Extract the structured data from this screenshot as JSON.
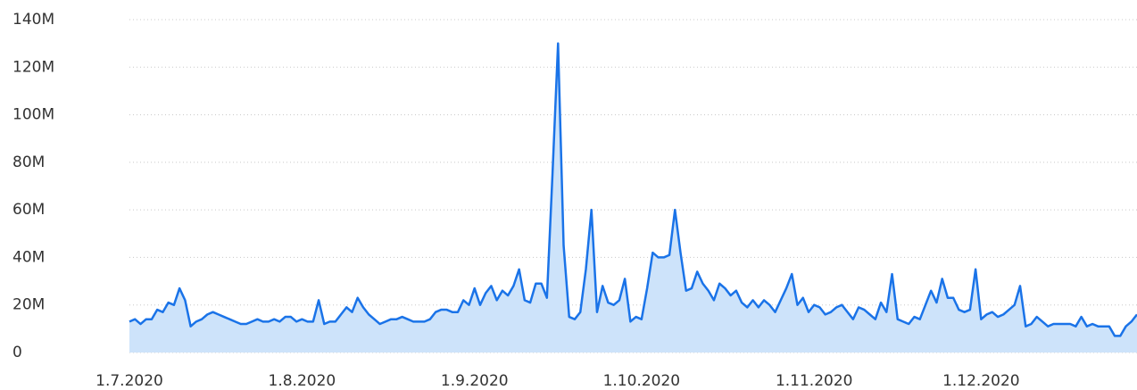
{
  "chart_data": {
    "type": "area",
    "x": [
      "2020-07-01",
      "2020-07-02",
      "2020-07-03",
      "2020-07-04",
      "2020-07-05",
      "2020-07-06",
      "2020-07-07",
      "2020-07-08",
      "2020-07-09",
      "2020-07-10",
      "2020-07-11",
      "2020-07-12",
      "2020-07-13",
      "2020-07-14",
      "2020-07-15",
      "2020-07-16",
      "2020-07-17",
      "2020-07-18",
      "2020-07-19",
      "2020-07-20",
      "2020-07-21",
      "2020-07-22",
      "2020-07-23",
      "2020-07-24",
      "2020-07-25",
      "2020-07-26",
      "2020-07-27",
      "2020-07-28",
      "2020-07-29",
      "2020-07-30",
      "2020-07-31",
      "2020-08-01",
      "2020-08-02",
      "2020-08-03",
      "2020-08-04",
      "2020-08-05",
      "2020-08-06",
      "2020-08-07",
      "2020-08-08",
      "2020-08-09",
      "2020-08-10",
      "2020-08-11",
      "2020-08-12",
      "2020-08-13",
      "2020-08-14",
      "2020-08-15",
      "2020-08-16",
      "2020-08-17",
      "2020-08-18",
      "2020-08-19",
      "2020-08-20",
      "2020-08-21",
      "2020-08-22",
      "2020-08-23",
      "2020-08-24",
      "2020-08-25",
      "2020-08-26",
      "2020-08-27",
      "2020-08-28",
      "2020-08-29",
      "2020-08-30",
      "2020-08-31",
      "2020-09-01",
      "2020-09-02",
      "2020-09-03",
      "2020-09-04",
      "2020-09-05",
      "2020-09-06",
      "2020-09-07",
      "2020-09-08",
      "2020-09-09",
      "2020-09-10",
      "2020-09-11",
      "2020-09-12",
      "2020-09-13",
      "2020-09-14",
      "2020-09-15",
      "2020-09-16",
      "2020-09-17",
      "2020-09-18",
      "2020-09-19",
      "2020-09-20",
      "2020-09-21",
      "2020-09-22",
      "2020-09-23",
      "2020-09-24",
      "2020-09-25",
      "2020-09-26",
      "2020-09-27",
      "2020-09-28",
      "2020-09-29",
      "2020-09-30",
      "2020-10-01",
      "2020-10-02",
      "2020-10-03",
      "2020-10-04",
      "2020-10-05",
      "2020-10-06",
      "2020-10-07",
      "2020-10-08",
      "2020-10-09",
      "2020-10-10",
      "2020-10-11",
      "2020-10-12",
      "2020-10-13",
      "2020-10-14",
      "2020-10-15",
      "2020-10-16",
      "2020-10-17",
      "2020-10-18",
      "2020-10-19",
      "2020-10-20",
      "2020-10-21",
      "2020-10-22",
      "2020-10-23",
      "2020-10-24",
      "2020-10-25",
      "2020-10-26",
      "2020-10-27",
      "2020-10-28",
      "2020-10-29",
      "2020-10-30",
      "2020-10-31",
      "2020-11-01",
      "2020-11-02",
      "2020-11-03",
      "2020-11-04",
      "2020-11-05",
      "2020-11-06",
      "2020-11-07",
      "2020-11-08",
      "2020-11-09",
      "2020-11-10",
      "2020-11-11",
      "2020-11-12",
      "2020-11-13",
      "2020-11-14",
      "2020-11-15",
      "2020-11-16",
      "2020-11-17",
      "2020-11-18",
      "2020-11-19",
      "2020-11-20",
      "2020-11-21",
      "2020-11-22",
      "2020-11-23",
      "2020-11-24",
      "2020-11-25",
      "2020-11-26",
      "2020-11-27",
      "2020-11-28",
      "2020-11-29",
      "2020-11-30",
      "2020-12-01",
      "2020-12-02",
      "2020-12-03",
      "2020-12-04",
      "2020-12-05",
      "2020-12-06",
      "2020-12-07",
      "2020-12-08",
      "2020-12-09",
      "2020-12-10",
      "2020-12-11",
      "2020-12-12",
      "2020-12-13",
      "2020-12-14",
      "2020-12-15",
      "2020-12-16",
      "2020-12-17",
      "2020-12-18",
      "2020-12-19",
      "2020-12-20",
      "2020-12-21",
      "2020-12-22",
      "2020-12-23",
      "2020-12-24",
      "2020-12-25",
      "2020-12-26",
      "2020-12-27",
      "2020-12-28",
      "2020-12-29"
    ],
    "values": [
      13000000,
      14000000,
      12000000,
      14000000,
      14000000,
      18000000,
      17000000,
      21000000,
      20000000,
      27000000,
      22000000,
      11000000,
      13000000,
      14000000,
      16000000,
      17000000,
      16000000,
      15000000,
      14000000,
      13000000,
      12000000,
      12000000,
      13000000,
      14000000,
      13000000,
      13000000,
      14000000,
      13000000,
      15000000,
      15000000,
      13000000,
      14000000,
      13000000,
      13000000,
      22000000,
      12000000,
      13000000,
      13000000,
      16000000,
      19000000,
      17000000,
      23000000,
      19000000,
      16000000,
      14000000,
      12000000,
      13000000,
      14000000,
      14000000,
      15000000,
      14000000,
      13000000,
      13000000,
      13000000,
      14000000,
      17000000,
      18000000,
      18000000,
      17000000,
      17000000,
      22000000,
      20000000,
      27000000,
      20000000,
      25000000,
      28000000,
      22000000,
      26000000,
      24000000,
      28000000,
      35000000,
      22000000,
      21000000,
      29000000,
      29000000,
      23000000,
      75000000,
      130000000,
      45000000,
      15000000,
      14000000,
      17000000,
      35000000,
      60000000,
      17000000,
      28000000,
      21000000,
      20000000,
      22000000,
      31000000,
      13000000,
      15000000,
      14000000,
      27000000,
      42000000,
      40000000,
      40000000,
      41000000,
      60000000,
      42000000,
      26000000,
      27000000,
      34000000,
      29000000,
      26000000,
      22000000,
      29000000,
      27000000,
      24000000,
      26000000,
      21000000,
      19000000,
      22000000,
      19000000,
      22000000,
      20000000,
      17000000,
      22000000,
      27000000,
      33000000,
      20000000,
      23000000,
      17000000,
      20000000,
      19000000,
      16000000,
      17000000,
      19000000,
      20000000,
      17000000,
      14000000,
      19000000,
      18000000,
      16000000,
      14000000,
      21000000,
      17000000,
      33000000,
      14000000,
      13000000,
      12000000,
      15000000,
      14000000,
      20000000,
      26000000,
      21000000,
      31000000,
      23000000,
      23000000,
      18000000,
      17000000,
      18000000,
      35000000,
      14000000,
      16000000,
      17000000,
      15000000,
      16000000,
      18000000,
      20000000,
      28000000,
      11000000,
      12000000,
      15000000,
      13000000,
      11000000,
      12000000,
      12000000,
      12000000,
      12000000,
      11000000,
      15000000,
      11000000,
      12000000,
      11000000,
      11000000,
      11000000,
      7000000,
      7000000,
      11000000,
      13000000,
      16000000
    ],
    "color": "#1a73e8",
    "fill": "#cde3fa",
    "xlim": [
      "2020-07-01",
      "2020-12-29"
    ],
    "xticks": [
      {
        "value": "2020-07-01",
        "label": "1.7.2020"
      },
      {
        "value": "2020-08-01",
        "label": "1.8.2020"
      },
      {
        "value": "2020-09-01",
        "label": "1.9.2020"
      },
      {
        "value": "2020-10-01",
        "label": "1.10.2020"
      },
      {
        "value": "2020-11-01",
        "label": "1.11.2020"
      },
      {
        "value": "2020-12-01",
        "label": "1.12.2020"
      }
    ],
    "ylim": [
      0,
      140000000
    ],
    "yticks": [
      0,
      {
        "value": 20000000,
        "label": "20M"
      },
      {
        "value": 40000000,
        "label": "40M"
      },
      {
        "value": 60000000,
        "label": "60M"
      },
      {
        "value": 80000000,
        "label": "80M"
      },
      {
        "value": 100000000,
        "label": "100M"
      },
      {
        "value": 120000000,
        "label": "120M"
      },
      {
        "value": 140000000,
        "label": "140M"
      }
    ],
    "grid": true
  }
}
